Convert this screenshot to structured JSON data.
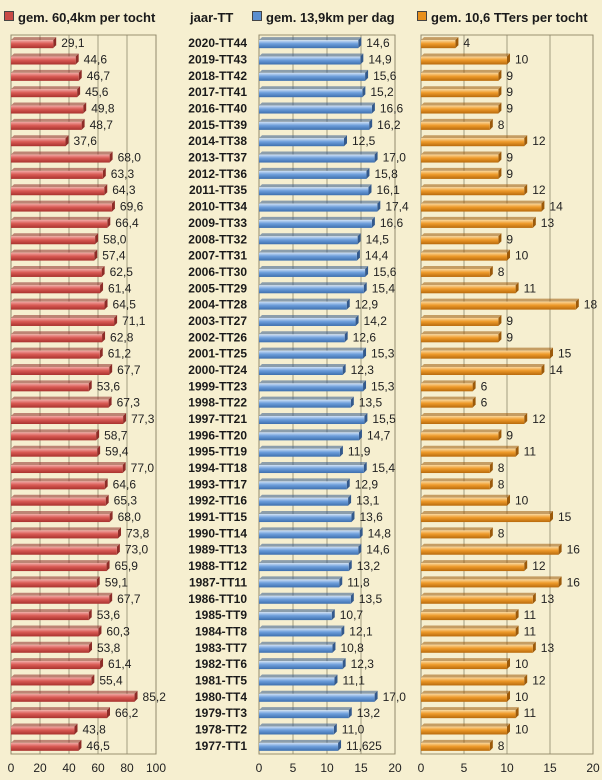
{
  "legend": {
    "km_per_tocht": "gem. 60,4km per tocht",
    "column_title": "jaar-TT",
    "km_per_dag": "gem. 13,9km per dag",
    "tters_per_tocht": "gem. 10,6 TTers per tocht"
  },
  "colors": {
    "red_series": "#c94a45",
    "blue_series": "#5b8fd0",
    "orange_series": "#e8901c",
    "background": "#f6efd0"
  },
  "chart_data": [
    {
      "type": "bar",
      "orientation": "horizontal",
      "title": "gem. 60,4km per tocht",
      "xlim": [
        0,
        100
      ],
      "xticks": [
        "0",
        "20",
        "40",
        "60",
        "80",
        "100"
      ],
      "grid": true,
      "categories": [
        "2020-TT44",
        "2019-TT43",
        "2018-TT42",
        "2017-TT41",
        "2016-TT40",
        "2015-TT39",
        "2014-TT38",
        "2013-TT37",
        "2012-TT36",
        "2011-TT35",
        "2010-TT34",
        "2009-TT33",
        "2008-TT32",
        "2007-TT31",
        "2006-TT30",
        "2005-TT29",
        "2004-TT28",
        "2003-TT27",
        "2002-TT26",
        "2001-TT25",
        "2000-TT24",
        "1999-TT23",
        "1998-TT22",
        "1997-TT21",
        "1996-TT20",
        "1995-TT19",
        "1994-TT18",
        "1993-TT17",
        "1992-TT16",
        "1991-TT15",
        "1990-TT14",
        "1989-TT13",
        "1988-TT12",
        "1987-TT11",
        "1986-TT10",
        "1985-TT9",
        "1984-TT8",
        "1983-TT7",
        "1982-TT6",
        "1981-TT5",
        "1980-TT4",
        "1979-TT3",
        "1978-TT2",
        "1977-TT1"
      ],
      "values": [
        29.1,
        44.6,
        46.7,
        45.6,
        49.8,
        48.7,
        37.6,
        68.0,
        63.3,
        64.3,
        69.6,
        66.4,
        58.0,
        57.4,
        62.5,
        61.4,
        64.5,
        71.1,
        62.8,
        61.2,
        67.7,
        53.6,
        67.3,
        77.3,
        58.7,
        59.4,
        77.0,
        64.6,
        65.3,
        68.0,
        73.8,
        73.0,
        65.9,
        59.1,
        67.7,
        53.6,
        60.3,
        53.8,
        61.4,
        55.4,
        85.2,
        66.2,
        43.8,
        46.5
      ],
      "labels": [
        "29,1",
        "44,6",
        "46,7",
        "45,6",
        "49,8",
        "48,7",
        "37,6",
        "68,0",
        "63,3",
        "64,3",
        "69,6",
        "66,4",
        "58,0",
        "57,4",
        "62,5",
        "61,4",
        "64,5",
        "71,1",
        "62,8",
        "61,2",
        "67,7",
        "53,6",
        "67,3",
        "77,3",
        "58,7",
        "59,4",
        "77,0",
        "64,6",
        "65,3",
        "68,0",
        "73,8",
        "73,0",
        "65,9",
        "59,1",
        "67,7",
        "53,6",
        "60,3",
        "53,8",
        "61,4",
        "55,4",
        "85,2",
        "66,2",
        "43,8",
        "46,5"
      ]
    },
    {
      "type": "bar",
      "orientation": "horizontal",
      "title": "gem. 13,9km per dag",
      "xlim": [
        0,
        20
      ],
      "xticks": [
        "0",
        "5",
        "10",
        "15",
        "20"
      ],
      "grid": true,
      "categories": [
        "2020-TT44",
        "2019-TT43",
        "2018-TT42",
        "2017-TT41",
        "2016-TT40",
        "2015-TT39",
        "2014-TT38",
        "2013-TT37",
        "2012-TT36",
        "2011-TT35",
        "2010-TT34",
        "2009-TT33",
        "2008-TT32",
        "2007-TT31",
        "2006-TT30",
        "2005-TT29",
        "2004-TT28",
        "2003-TT27",
        "2002-TT26",
        "2001-TT25",
        "2000-TT24",
        "1999-TT23",
        "1998-TT22",
        "1997-TT21",
        "1996-TT20",
        "1995-TT19",
        "1994-TT18",
        "1993-TT17",
        "1992-TT16",
        "1991-TT15",
        "1990-TT14",
        "1989-TT13",
        "1988-TT12",
        "1987-TT11",
        "1986-TT10",
        "1985-TT9",
        "1984-TT8",
        "1983-TT7",
        "1982-TT6",
        "1981-TT5",
        "1980-TT4",
        "1979-TT3",
        "1978-TT2",
        "1977-TT1"
      ],
      "values": [
        14.6,
        14.9,
        15.6,
        15.2,
        16.6,
        16.2,
        12.5,
        17.0,
        15.8,
        16.1,
        17.4,
        16.6,
        14.5,
        14.4,
        15.6,
        15.4,
        12.9,
        14.2,
        12.6,
        15.3,
        12.3,
        15.3,
        13.5,
        15.5,
        14.7,
        11.9,
        15.4,
        12.9,
        13.1,
        13.6,
        14.8,
        14.6,
        13.2,
        11.8,
        13.5,
        10.7,
        12.1,
        10.8,
        12.3,
        11.1,
        17.0,
        13.2,
        11.0,
        11.625
      ],
      "labels": [
        "14,6",
        "14,9",
        "15,6",
        "15,2",
        "16,6",
        "16,2",
        "12,5",
        "17,0",
        "15,8",
        "16,1",
        "17,4",
        "16,6",
        "14,5",
        "14,4",
        "15,6",
        "15,4",
        "12,9",
        "14,2",
        "12,6",
        "15,3",
        "12,3",
        "15,3",
        "13,5",
        "15,5",
        "14,7",
        "11,9",
        "15,4",
        "12,9",
        "13,1",
        "13,6",
        "14,8",
        "14,6",
        "13,2",
        "11,8",
        "13,5",
        "10,7",
        "12,1",
        "10,8",
        "12,3",
        "11,1",
        "17,0",
        "13,2",
        "11,0",
        "11,625"
      ]
    },
    {
      "type": "bar",
      "orientation": "horizontal",
      "title": "gem. 10,6 TTers per tocht",
      "xlim": [
        0,
        20
      ],
      "xticks": [
        "0",
        "5",
        "10",
        "15",
        "20"
      ],
      "grid": true,
      "categories": [
        "2020-TT44",
        "2019-TT43",
        "2018-TT42",
        "2017-TT41",
        "2016-TT40",
        "2015-TT39",
        "2014-TT38",
        "2013-TT37",
        "2012-TT36",
        "2011-TT35",
        "2010-TT34",
        "2009-TT33",
        "2008-TT32",
        "2007-TT31",
        "2006-TT30",
        "2005-TT29",
        "2004-TT28",
        "2003-TT27",
        "2002-TT26",
        "2001-TT25",
        "2000-TT24",
        "1999-TT23",
        "1998-TT22",
        "1997-TT21",
        "1996-TT20",
        "1995-TT19",
        "1994-TT18",
        "1993-TT17",
        "1992-TT16",
        "1991-TT15",
        "1990-TT14",
        "1989-TT13",
        "1988-TT12",
        "1987-TT11",
        "1986-TT10",
        "1985-TT9",
        "1984-TT8",
        "1983-TT7",
        "1982-TT6",
        "1981-TT5",
        "1980-TT4",
        "1979-TT3",
        "1978-TT2",
        "1977-TT1"
      ],
      "values": [
        4,
        10,
        9,
        9,
        9,
        8,
        12,
        9,
        9,
        12,
        14,
        13,
        9,
        10,
        8,
        11,
        18,
        9,
        9,
        15,
        14,
        6,
        6,
        12,
        9,
        11,
        8,
        8,
        10,
        15,
        8,
        16,
        12,
        16,
        13,
        11,
        11,
        13,
        10,
        12,
        10,
        11,
        10,
        8
      ],
      "labels": [
        "4",
        "10",
        "9",
        "9",
        "9",
        "8",
        "12",
        "9",
        "9",
        "12",
        "14",
        "13",
        "9",
        "10",
        "8",
        "11",
        "18",
        "9",
        "9",
        "15",
        "14",
        "6",
        "6",
        "12",
        "9",
        "11",
        "8",
        "8",
        "10",
        "15",
        "8",
        "16",
        "12",
        "16",
        "13",
        "11",
        "11",
        "13",
        "10",
        "12",
        "10",
        "11",
        "10",
        "8"
      ]
    }
  ]
}
